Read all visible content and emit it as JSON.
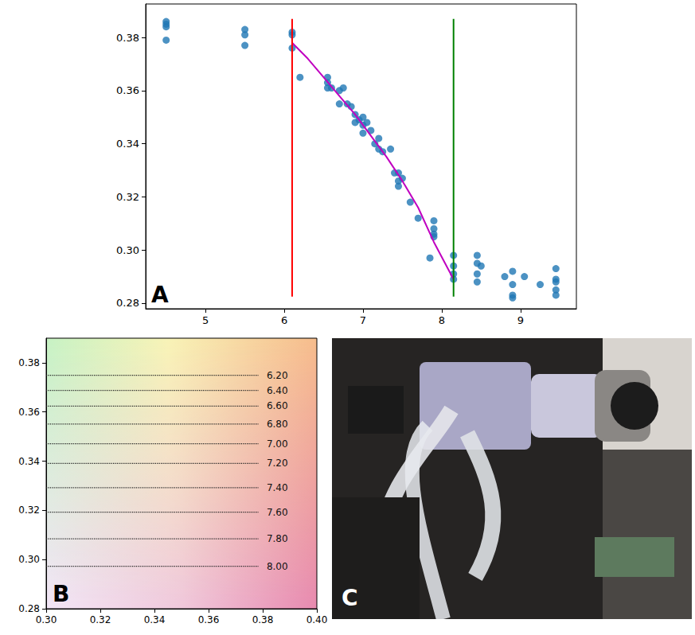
{
  "chart_data": [
    {
      "type": "scatter",
      "panel_label": "A",
      "xlim": [
        4.24,
        9.71
      ],
      "ylim": [
        0.2779,
        0.3926
      ],
      "xticks": [
        5,
        6,
        7,
        8,
        9
      ],
      "yticks": [
        0.28,
        {
          "value": 0.3,
          "label": "0.30"
        },
        0.32,
        0.34,
        0.36,
        0.38
      ],
      "grid": false,
      "series": [
        {
          "type": "scatter",
          "color": "#1f77b4",
          "marker": "circle",
          "x": [
            4.5,
            4.5,
            4.5,
            4.5,
            5.5,
            5.5,
            5.5,
            6.1,
            6.1,
            6.1,
            6.2,
            6.55,
            6.55,
            6.55,
            6.6,
            6.7,
            6.7,
            6.75,
            6.8,
            6.85,
            6.9,
            6.9,
            6.95,
            7.0,
            7.0,
            7.0,
            7.05,
            7.1,
            7.15,
            7.2,
            7.2,
            7.25,
            7.35,
            7.4,
            7.45,
            7.45,
            7.45,
            7.5,
            7.6,
            7.7,
            7.85,
            7.9,
            7.9,
            7.9,
            7.9,
            8.15,
            8.15,
            8.15,
            8.15,
            8.45,
            8.45,
            8.45,
            8.45,
            8.5,
            8.8,
            8.9,
            8.9,
            8.9,
            8.9,
            9.05,
            9.25,
            9.45,
            9.45,
            9.45,
            9.45,
            9.45
          ],
          "values": [
            0.386,
            0.385,
            0.384,
            0.379,
            0.383,
            0.381,
            0.377,
            0.382,
            0.381,
            0.376,
            0.365,
            0.365,
            0.363,
            0.361,
            0.361,
            0.355,
            0.36,
            0.361,
            0.355,
            0.354,
            0.351,
            0.348,
            0.349,
            0.35,
            0.347,
            0.344,
            0.348,
            0.345,
            0.34,
            0.342,
            0.338,
            0.337,
            0.338,
            0.329,
            0.329,
            0.326,
            0.324,
            0.327,
            0.318,
            0.312,
            0.297,
            0.311,
            0.308,
            0.306,
            0.305,
            0.298,
            0.294,
            0.291,
            0.289,
            0.298,
            0.295,
            0.291,
            0.288,
            0.294,
            0.29,
            0.292,
            0.287,
            0.283,
            0.282,
            0.29,
            0.287,
            0.293,
            0.289,
            0.288,
            0.285,
            0.283
          ]
        },
        {
          "type": "line",
          "color": "#c000c0",
          "line_style": "solid",
          "x": [
            6.1,
            6.3,
            6.5,
            6.7,
            6.9,
            7.1,
            7.3,
            7.5,
            7.7,
            7.9,
            8.15
          ],
          "values": [
            0.378,
            0.372,
            0.365,
            0.358,
            0.351,
            0.343,
            0.335,
            0.326,
            0.316,
            0.303,
            0.289
          ]
        },
        {
          "type": "line",
          "color": "#ff0000",
          "line_style": "solid",
          "x": [
            6.1,
            6.1
          ],
          "values": [
            0.2825,
            0.387
          ]
        },
        {
          "type": "line",
          "color": "#008000",
          "line_style": "solid",
          "x": [
            8.15,
            8.15
          ],
          "values": [
            0.2825,
            0.387
          ]
        }
      ]
    },
    {
      "type": "reference_lines",
      "panel_label": "B",
      "xlim": [
        0.3,
        0.4
      ],
      "ylim": [
        0.28,
        0.39
      ],
      "xticks": [
        {
          "value": 0.3,
          "label": "0.30"
        },
        0.32,
        0.34,
        0.36,
        0.38,
        {
          "value": 0.4,
          "label": "0.40"
        }
      ],
      "yticks": [
        0.28,
        {
          "value": 0.3,
          "label": "0.30"
        },
        0.32,
        0.34,
        0.36,
        0.38
      ],
      "grid": false,
      "line_style": "dotted",
      "color": "#222222",
      "lines": {
        "x": [
          0.3,
          0.3785
        ],
        "y": [
          0.3749,
          0.3688,
          0.3624,
          0.3551,
          0.3471,
          0.3391,
          0.3292,
          0.3193,
          0.3084,
          0.2973
        ],
        "labels": [
          "6.20",
          "6.40",
          "6.60",
          "6.80",
          "7.00",
          "7.20",
          "7.40",
          "7.60",
          "7.80",
          "8.00"
        ]
      }
    },
    {
      "type": "image",
      "panel_label": "C"
    }
  ]
}
